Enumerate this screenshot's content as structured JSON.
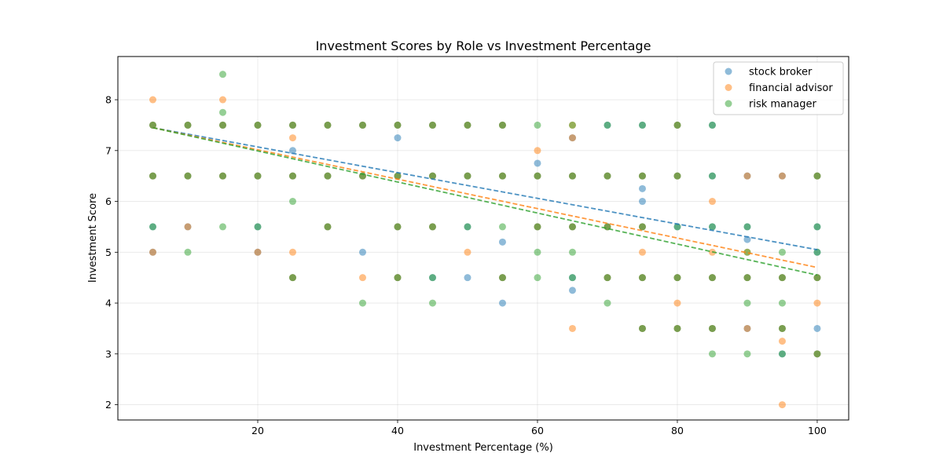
{
  "chart_data": {
    "type": "scatter",
    "title": "Investment Scores by Role vs Investment Percentage",
    "xlabel": "Investment Percentage (%)",
    "ylabel": "Investment Score",
    "xlim": [
      0,
      104.5
    ],
    "ylim": [
      1.7,
      8.85
    ],
    "xticks": [
      20,
      40,
      60,
      80,
      100
    ],
    "yticks": [
      2,
      3,
      4,
      5,
      6,
      7,
      8
    ],
    "grid": true,
    "legend_position": "upper right",
    "series": [
      {
        "name": "stock broker",
        "color": "#1f77b4",
        "trend": [
          [
            5,
            7.45
          ],
          [
            100,
            5.05
          ]
        ],
        "points": [
          [
            5,
            7.5
          ],
          [
            5,
            6.5
          ],
          [
            5,
            5.5
          ],
          [
            5,
            5
          ],
          [
            10,
            7.5
          ],
          [
            10,
            6.5
          ],
          [
            10,
            5.5
          ],
          [
            15,
            7.5
          ],
          [
            15,
            6.5
          ],
          [
            20,
            7.5
          ],
          [
            20,
            6.5
          ],
          [
            20,
            5.5
          ],
          [
            20,
            5
          ],
          [
            25,
            7.5
          ],
          [
            25,
            7
          ],
          [
            25,
            6.5
          ],
          [
            25,
            4.5
          ],
          [
            30,
            7.5
          ],
          [
            30,
            6.5
          ],
          [
            30,
            5.5
          ],
          [
            35,
            7.5
          ],
          [
            35,
            6.5
          ],
          [
            35,
            5
          ],
          [
            40,
            7.5
          ],
          [
            40,
            7.25
          ],
          [
            40,
            6.5
          ],
          [
            40,
            5.5
          ],
          [
            40,
            4.5
          ],
          [
            45,
            7.5
          ],
          [
            45,
            6.5
          ],
          [
            45,
            5.5
          ],
          [
            45,
            4.5
          ],
          [
            50,
            7.5
          ],
          [
            50,
            6.5
          ],
          [
            50,
            5.5
          ],
          [
            50,
            4.5
          ],
          [
            55,
            7.5
          ],
          [
            55,
            6.5
          ],
          [
            55,
            5.2
          ],
          [
            55,
            4.5
          ],
          [
            55,
            4
          ],
          [
            60,
            6.75
          ],
          [
            60,
            6.5
          ],
          [
            60,
            5.5
          ],
          [
            65,
            7.25
          ],
          [
            65,
            6.5
          ],
          [
            65,
            5.5
          ],
          [
            65,
            4.5
          ],
          [
            65,
            4.25
          ],
          [
            70,
            7.5
          ],
          [
            70,
            6.5
          ],
          [
            70,
            5.5
          ],
          [
            70,
            4.5
          ],
          [
            75,
            7.5
          ],
          [
            75,
            6.5
          ],
          [
            75,
            6.25
          ],
          [
            75,
            6
          ],
          [
            75,
            5.5
          ],
          [
            75,
            4.5
          ],
          [
            75,
            3.5
          ],
          [
            80,
            7.5
          ],
          [
            80,
            6.5
          ],
          [
            80,
            5.5
          ],
          [
            80,
            4.5
          ],
          [
            80,
            3.5
          ],
          [
            85,
            7.5
          ],
          [
            85,
            6.5
          ],
          [
            85,
            5.5
          ],
          [
            85,
            4.5
          ],
          [
            85,
            3.5
          ],
          [
            90,
            6.5
          ],
          [
            90,
            5.5
          ],
          [
            90,
            5.25
          ],
          [
            90,
            4.5
          ],
          [
            90,
            3.5
          ],
          [
            95,
            6.5
          ],
          [
            95,
            4.5
          ],
          [
            95,
            3.5
          ],
          [
            95,
            3
          ],
          [
            100,
            6.5
          ],
          [
            100,
            5.5
          ],
          [
            100,
            5
          ],
          [
            100,
            4.5
          ],
          [
            100,
            3.5
          ],
          [
            100,
            3
          ]
        ]
      },
      {
        "name": "financial advisor",
        "color": "#ff7f0e",
        "trend": [
          [
            5,
            7.45
          ],
          [
            100,
            4.7
          ]
        ],
        "points": [
          [
            5,
            8
          ],
          [
            5,
            7.5
          ],
          [
            5,
            6.5
          ],
          [
            5,
            5
          ],
          [
            10,
            7.5
          ],
          [
            10,
            6.5
          ],
          [
            10,
            5.5
          ],
          [
            15,
            8
          ],
          [
            15,
            7.5
          ],
          [
            15,
            6.5
          ],
          [
            20,
            7.5
          ],
          [
            20,
            6.5
          ],
          [
            20,
            5
          ],
          [
            25,
            7.5
          ],
          [
            25,
            7.25
          ],
          [
            25,
            6.5
          ],
          [
            25,
            5
          ],
          [
            25,
            4.5
          ],
          [
            30,
            7.5
          ],
          [
            30,
            6.5
          ],
          [
            30,
            5.5
          ],
          [
            35,
            7.5
          ],
          [
            35,
            6.5
          ],
          [
            35,
            4.5
          ],
          [
            40,
            7.5
          ],
          [
            40,
            6.5
          ],
          [
            40,
            5.5
          ],
          [
            40,
            4.5
          ],
          [
            45,
            7.5
          ],
          [
            45,
            6.5
          ],
          [
            45,
            5.5
          ],
          [
            50,
            7.5
          ],
          [
            50,
            6.5
          ],
          [
            50,
            5
          ],
          [
            55,
            7.5
          ],
          [
            55,
            6.5
          ],
          [
            55,
            4.5
          ],
          [
            60,
            7
          ],
          [
            60,
            6.5
          ],
          [
            60,
            5.5
          ],
          [
            65,
            7.5
          ],
          [
            65,
            7.25
          ],
          [
            65,
            6.5
          ],
          [
            65,
            5.5
          ],
          [
            65,
            3.5
          ],
          [
            70,
            6.5
          ],
          [
            70,
            5.5
          ],
          [
            70,
            4.5
          ],
          [
            75,
            6.5
          ],
          [
            75,
            5.5
          ],
          [
            75,
            5
          ],
          [
            75,
            4.5
          ],
          [
            75,
            3.5
          ],
          [
            80,
            7.5
          ],
          [
            80,
            6.5
          ],
          [
            80,
            4.5
          ],
          [
            80,
            4
          ],
          [
            80,
            3.5
          ],
          [
            85,
            6
          ],
          [
            85,
            5
          ],
          [
            85,
            4.5
          ],
          [
            85,
            3.5
          ],
          [
            90,
            6.5
          ],
          [
            90,
            5
          ],
          [
            90,
            4.5
          ],
          [
            90,
            3.5
          ],
          [
            95,
            6.5
          ],
          [
            95,
            4.5
          ],
          [
            95,
            3.5
          ],
          [
            95,
            3.25
          ],
          [
            95,
            2
          ],
          [
            100,
            6.5
          ],
          [
            100,
            4.5
          ],
          [
            100,
            4
          ],
          [
            100,
            3
          ]
        ]
      },
      {
        "name": "risk manager",
        "color": "#2ca02c",
        "trend": [
          [
            5,
            7.45
          ],
          [
            100,
            4.55
          ]
        ],
        "points": [
          [
            5,
            7.5
          ],
          [
            5,
            6.5
          ],
          [
            5,
            5.5
          ],
          [
            10,
            7.5
          ],
          [
            10,
            6.5
          ],
          [
            10,
            5
          ],
          [
            15,
            8.5
          ],
          [
            15,
            7.75
          ],
          [
            15,
            7.5
          ],
          [
            15,
            6.5
          ],
          [
            15,
            5.5
          ],
          [
            20,
            7.5
          ],
          [
            20,
            6.5
          ],
          [
            20,
            5.5
          ],
          [
            25,
            7.5
          ],
          [
            25,
            6.5
          ],
          [
            25,
            6
          ],
          [
            25,
            4.5
          ],
          [
            30,
            7.5
          ],
          [
            30,
            6.5
          ],
          [
            30,
            5.5
          ],
          [
            35,
            7.5
          ],
          [
            35,
            6.5
          ],
          [
            35,
            4
          ],
          [
            40,
            7.5
          ],
          [
            40,
            6.5
          ],
          [
            40,
            5.5
          ],
          [
            40,
            4.5
          ],
          [
            45,
            7.5
          ],
          [
            45,
            6.5
          ],
          [
            45,
            5.5
          ],
          [
            45,
            4.5
          ],
          [
            45,
            4
          ],
          [
            50,
            7.5
          ],
          [
            50,
            6.5
          ],
          [
            50,
            5.5
          ],
          [
            55,
            7.5
          ],
          [
            55,
            6.5
          ],
          [
            55,
            5.5
          ],
          [
            55,
            4.5
          ],
          [
            60,
            7.5
          ],
          [
            60,
            6.5
          ],
          [
            60,
            5.5
          ],
          [
            60,
            5
          ],
          [
            60,
            4.5
          ],
          [
            65,
            7.5
          ],
          [
            65,
            6.5
          ],
          [
            65,
            5.5
          ],
          [
            65,
            5
          ],
          [
            65,
            4.5
          ],
          [
            70,
            7.5
          ],
          [
            70,
            6.5
          ],
          [
            70,
            5.5
          ],
          [
            70,
            4.5
          ],
          [
            70,
            4
          ],
          [
            75,
            7.5
          ],
          [
            75,
            6.5
          ],
          [
            75,
            5.5
          ],
          [
            75,
            4.5
          ],
          [
            75,
            3.5
          ],
          [
            80,
            7.5
          ],
          [
            80,
            6.5
          ],
          [
            80,
            5.5
          ],
          [
            80,
            4.5
          ],
          [
            80,
            3.5
          ],
          [
            85,
            7.5
          ],
          [
            85,
            6.5
          ],
          [
            85,
            5.5
          ],
          [
            85,
            4.5
          ],
          [
            85,
            3.5
          ],
          [
            85,
            3
          ],
          [
            90,
            5.5
          ],
          [
            90,
            5
          ],
          [
            90,
            4.5
          ],
          [
            90,
            4
          ],
          [
            90,
            3
          ],
          [
            95,
            5
          ],
          [
            95,
            4.5
          ],
          [
            95,
            4
          ],
          [
            95,
            3.5
          ],
          [
            95,
            3
          ],
          [
            100,
            6.5
          ],
          [
            100,
            5.5
          ],
          [
            100,
            5
          ],
          [
            100,
            4.5
          ],
          [
            100,
            3
          ]
        ]
      }
    ]
  }
}
